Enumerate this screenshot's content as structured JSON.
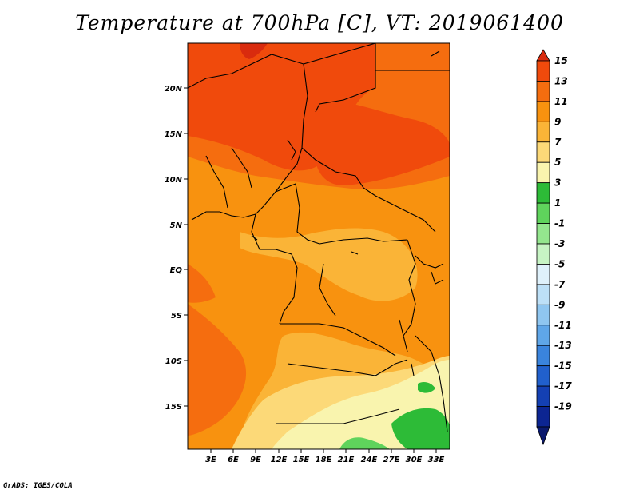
{
  "title": "Temperature at 700hPa [C], VT: 2019061400",
  "credit": "GrADS: IGES/COLA",
  "map": {
    "lat_labels": [
      "20N",
      "15N",
      "10N",
      "5N",
      "EQ",
      "5S",
      "10S",
      "15S"
    ],
    "lon_labels": [
      "3E",
      "6E",
      "9E",
      "12E",
      "15E",
      "18E",
      "21E",
      "24E",
      "27E",
      "30E",
      "33E"
    ]
  },
  "colorbar": {
    "labels": [
      "15",
      "13",
      "11",
      "9",
      "7",
      "5",
      "3",
      "1",
      "-1",
      "-3",
      "-5",
      "-7",
      "-9",
      "-11",
      "-13",
      "-15",
      "-17",
      "-19"
    ],
    "colors": [
      "#d92b0e",
      "#f04a0c",
      "#f56d0f",
      "#f8920f",
      "#fab437",
      "#fcd978",
      "#f9f4ae",
      "#2dbb37",
      "#5fd35c",
      "#94e68e",
      "#c7f4c4",
      "#dff1fb",
      "#bde0f7",
      "#8fc6f0",
      "#5fa6e8",
      "#3a84dd",
      "#2160cc",
      "#1440b3",
      "#0c2592",
      "#0b1a6e"
    ]
  }
}
